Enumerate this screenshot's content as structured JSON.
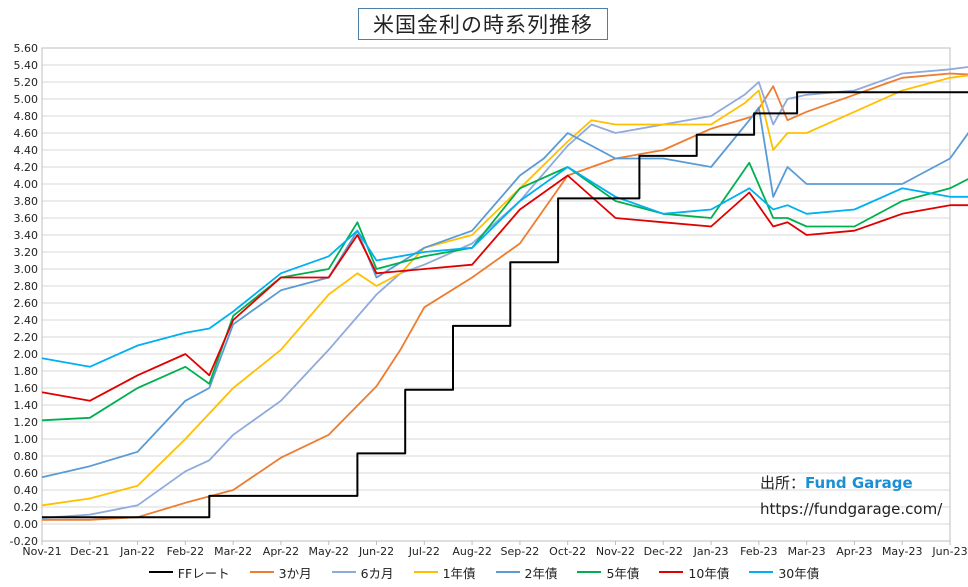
{
  "title": "米国金利の時系列推移",
  "source": {
    "label": "出所：",
    "brand": "Fund Garage",
    "url": "https://fundgarage.com/"
  },
  "chart_data": {
    "type": "line",
    "y_range": [
      -0.2,
      5.6
    ],
    "y_ticks": [
      "-0.20",
      "0.00",
      "0.20",
      "0.40",
      "0.60",
      "0.80",
      "1.00",
      "1.20",
      "1.40",
      "1.60",
      "1.80",
      "2.00",
      "2.20",
      "2.40",
      "2.60",
      "2.80",
      "3.00",
      "3.20",
      "3.40",
      "3.60",
      "3.80",
      "4.00",
      "4.20",
      "4.40",
      "4.60",
      "4.80",
      "5.00",
      "5.20",
      "5.40",
      "5.60"
    ],
    "x_labels": [
      "Nov-21",
      "Dec-21",
      "Jan-22",
      "Feb-22",
      "Mar-22",
      "Apr-22",
      "May-22",
      "Jun-22",
      "Jul-22",
      "Aug-22",
      "Sep-22",
      "Oct-22",
      "Nov-22",
      "Dec-22",
      "Jan-23",
      "Feb-23",
      "Mar-23",
      "Apr-23",
      "May-23",
      "Jun-23"
    ],
    "grid": true,
    "legend_position": "bottom",
    "series": [
      {
        "name": "FFレート",
        "color": "#000000",
        "x": [
          0,
          3.5,
          3.5,
          6.6,
          6.6,
          7.6,
          7.6,
          8.6,
          8.6,
          9.8,
          9.8,
          10.8,
          10.8,
          12.5,
          12.5,
          13.7,
          13.7,
          14.9,
          14.9,
          15.8,
          15.8,
          17.7,
          17.7,
          19.7
        ],
        "y": [
          0.08,
          0.08,
          0.33,
          0.33,
          0.83,
          0.83,
          1.58,
          1.58,
          2.33,
          2.33,
          3.08,
          3.08,
          3.83,
          3.83,
          4.33,
          4.33,
          4.58,
          4.58,
          4.83,
          4.83,
          5.08,
          5.08,
          5.08,
          5.08
        ]
      },
      {
        "name": "3か月",
        "color": "#ed7d31",
        "x": [
          0,
          1,
          2,
          3,
          4,
          5,
          6,
          7,
          7.5,
          8,
          9,
          10,
          10.5,
          11,
          12,
          13,
          14,
          14.9,
          15.3,
          15.6,
          16,
          17,
          18,
          19,
          19.7
        ],
        "y": [
          0.05,
          0.05,
          0.08,
          0.25,
          0.4,
          0.78,
          1.05,
          1.62,
          2.05,
          2.55,
          2.9,
          3.3,
          3.7,
          4.1,
          4.3,
          4.4,
          4.65,
          4.8,
          5.15,
          4.75,
          4.85,
          5.05,
          5.25,
          5.3,
          5.28
        ]
      },
      {
        "name": "6カ月",
        "color": "#8faadc",
        "x": [
          0,
          1,
          2,
          3,
          3.5,
          4,
          5,
          6,
          7,
          7.5,
          8,
          9,
          10,
          11,
          11.5,
          12,
          13,
          14,
          14.7,
          15,
          15.3,
          15.6,
          16,
          17,
          18,
          19,
          19.7
        ],
        "y": [
          0.07,
          0.11,
          0.22,
          0.62,
          0.75,
          1.05,
          1.45,
          2.05,
          2.7,
          2.95,
          3.05,
          3.3,
          3.8,
          4.45,
          4.7,
          4.6,
          4.7,
          4.8,
          5.05,
          5.2,
          4.7,
          5.0,
          5.05,
          5.1,
          5.3,
          5.35,
          5.4
        ]
      },
      {
        "name": "1年債",
        "color": "#ffc000",
        "x": [
          0,
          1,
          2,
          3,
          3.5,
          4,
          5,
          6,
          6.6,
          7,
          7.5,
          8,
          9,
          10,
          11,
          11.5,
          12,
          13,
          14,
          14.7,
          15,
          15.3,
          15.6,
          16,
          17,
          18,
          19,
          19.7
        ],
        "y": [
          0.22,
          0.3,
          0.45,
          1.0,
          1.3,
          1.6,
          2.05,
          2.7,
          2.95,
          2.8,
          2.95,
          3.25,
          3.4,
          3.95,
          4.5,
          4.75,
          4.7,
          4.7,
          4.7,
          4.95,
          5.1,
          4.4,
          4.6,
          4.6,
          4.85,
          5.1,
          5.25,
          5.3
        ]
      },
      {
        "name": "2年債",
        "color": "#5b9bd5",
        "x": [
          0,
          1,
          2,
          3,
          3.5,
          4,
          5,
          6,
          6.6,
          7,
          8,
          9,
          10,
          10.5,
          11,
          12,
          13,
          14,
          14.8,
          15,
          15.3,
          15.6,
          16,
          17,
          18,
          19,
          19.7
        ],
        "y": [
          0.55,
          0.68,
          0.85,
          1.45,
          1.6,
          2.35,
          2.75,
          2.9,
          3.45,
          2.9,
          3.25,
          3.45,
          4.1,
          4.3,
          4.6,
          4.3,
          4.3,
          4.2,
          4.75,
          4.9,
          3.85,
          4.2,
          4.0,
          4.0,
          4.0,
          4.3,
          4.85
        ]
      },
      {
        "name": "5年債",
        "color": "#00b050",
        "x": [
          0,
          1,
          2,
          3,
          3.5,
          4,
          5,
          6,
          6.6,
          7,
          8,
          9,
          10,
          11,
          12,
          13,
          14,
          14.8,
          15.3,
          15.6,
          16,
          17,
          18,
          19,
          19.7
        ],
        "y": [
          1.22,
          1.25,
          1.6,
          1.85,
          1.65,
          2.45,
          2.9,
          3.0,
          3.55,
          3.0,
          3.15,
          3.25,
          3.95,
          4.2,
          3.8,
          3.65,
          3.6,
          4.25,
          3.6,
          3.6,
          3.5,
          3.5,
          3.8,
          3.95,
          4.15
        ]
      },
      {
        "name": "10年債",
        "color": "#e00000",
        "x": [
          0,
          1,
          2,
          3,
          3.5,
          4,
          5,
          6,
          6.6,
          7,
          8,
          9,
          10,
          11,
          12,
          13,
          14,
          14.8,
          15.3,
          15.6,
          16,
          17,
          18,
          19,
          19.7
        ],
        "y": [
          1.55,
          1.45,
          1.75,
          2.0,
          1.75,
          2.4,
          2.9,
          2.9,
          3.4,
          2.95,
          3.0,
          3.05,
          3.7,
          4.1,
          3.6,
          3.55,
          3.5,
          3.9,
          3.5,
          3.55,
          3.4,
          3.45,
          3.65,
          3.75,
          3.75
        ]
      },
      {
        "name": "30年債",
        "color": "#00b0f0",
        "x": [
          0,
          1,
          2,
          3,
          3.5,
          4,
          5,
          6,
          6.6,
          7,
          8,
          9,
          10,
          11,
          12,
          13,
          14,
          14.8,
          15.3,
          15.6,
          16,
          17,
          18,
          19,
          19.7
        ],
        "y": [
          1.95,
          1.85,
          2.1,
          2.25,
          2.3,
          2.5,
          2.95,
          3.15,
          3.45,
          3.1,
          3.2,
          3.25,
          3.8,
          4.2,
          3.85,
          3.65,
          3.7,
          3.95,
          3.7,
          3.75,
          3.65,
          3.7,
          3.95,
          3.85,
          3.85
        ]
      }
    ]
  }
}
